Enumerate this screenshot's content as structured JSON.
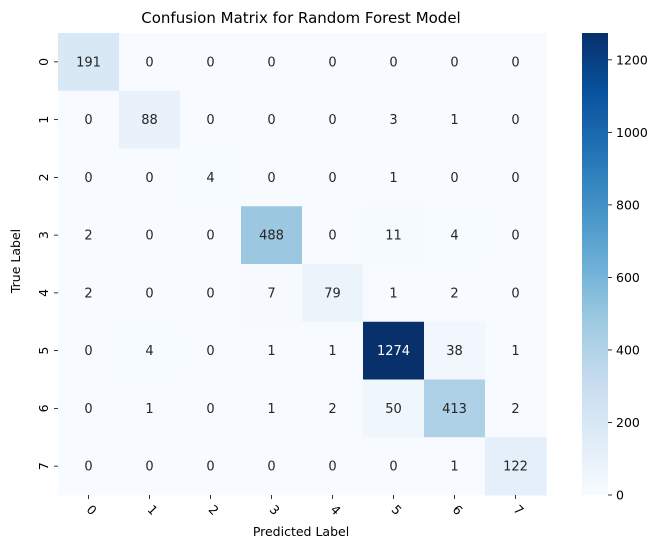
{
  "chart_data": {
    "type": "heatmap",
    "title": "Confusion Matrix for Random Forest Model",
    "xlabel": "Predicted Label",
    "ylabel": "True Label",
    "x_categories": [
      "0",
      "1",
      "2",
      "3",
      "4",
      "5",
      "6",
      "7"
    ],
    "y_categories": [
      "0",
      "1",
      "2",
      "3",
      "4",
      "5",
      "6",
      "7"
    ],
    "values": [
      [
        191,
        0,
        0,
        0,
        0,
        0,
        0,
        0
      ],
      [
        0,
        88,
        0,
        0,
        0,
        3,
        1,
        0
      ],
      [
        0,
        0,
        4,
        0,
        0,
        1,
        0,
        0
      ],
      [
        2,
        0,
        0,
        488,
        0,
        11,
        4,
        0
      ],
      [
        2,
        0,
        0,
        7,
        79,
        1,
        2,
        0
      ],
      [
        0,
        4,
        0,
        1,
        1,
        1274,
        38,
        1
      ],
      [
        0,
        1,
        0,
        1,
        2,
        50,
        413,
        2
      ],
      [
        0,
        0,
        0,
        0,
        0,
        0,
        1,
        122
      ]
    ],
    "colormap": "Blues",
    "vmin": 0,
    "vmax": 1274,
    "colorbar_ticks": [
      0,
      200,
      400,
      600,
      800,
      1000,
      1200
    ],
    "x_tick_rotation": 45
  }
}
